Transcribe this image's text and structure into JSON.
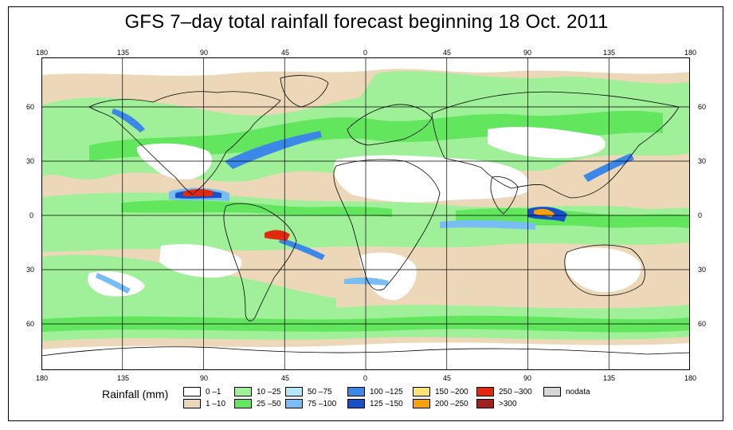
{
  "title": "GFS 7–day total rainfall forecast beginning 18 Oct. 2011",
  "lon_labels": [
    "180",
    "135",
    "90",
    "45",
    "0",
    "45",
    "90",
    "135",
    "180"
  ],
  "lat_labels": [
    "60",
    "30",
    "0",
    "30",
    "60"
  ],
  "legend": {
    "title": "Rainfall (mm)",
    "items": [
      {
        "label": "0 –1",
        "color": "#ffffff"
      },
      {
        "label": "1 –10",
        "color": "#ecd8b8"
      },
      {
        "label": "10 –25",
        "color": "#9ff099"
      },
      {
        "label": "25 –50",
        "color": "#62e65e"
      },
      {
        "label": "50 –75",
        "color": "#b3e8f8"
      },
      {
        "label": "75 –100",
        "color": "#78bdf6"
      },
      {
        "label": "100 –125",
        "color": "#3c88e8"
      },
      {
        "label": "125 –150",
        "color": "#1850c8"
      },
      {
        "label": "150 –200",
        "color": "#fbe37a"
      },
      {
        "label": "200 –250",
        "color": "#f9a10d"
      },
      {
        "label": "250 –300",
        "color": "#e02a10"
      },
      {
        "label": ">300",
        "color": "#a0201c"
      },
      {
        "label": "nodata",
        "color": "#d6d6d6"
      }
    ]
  },
  "colors": {
    "frame": "#000000",
    "grid": "#000000",
    "coast": "#000000"
  }
}
